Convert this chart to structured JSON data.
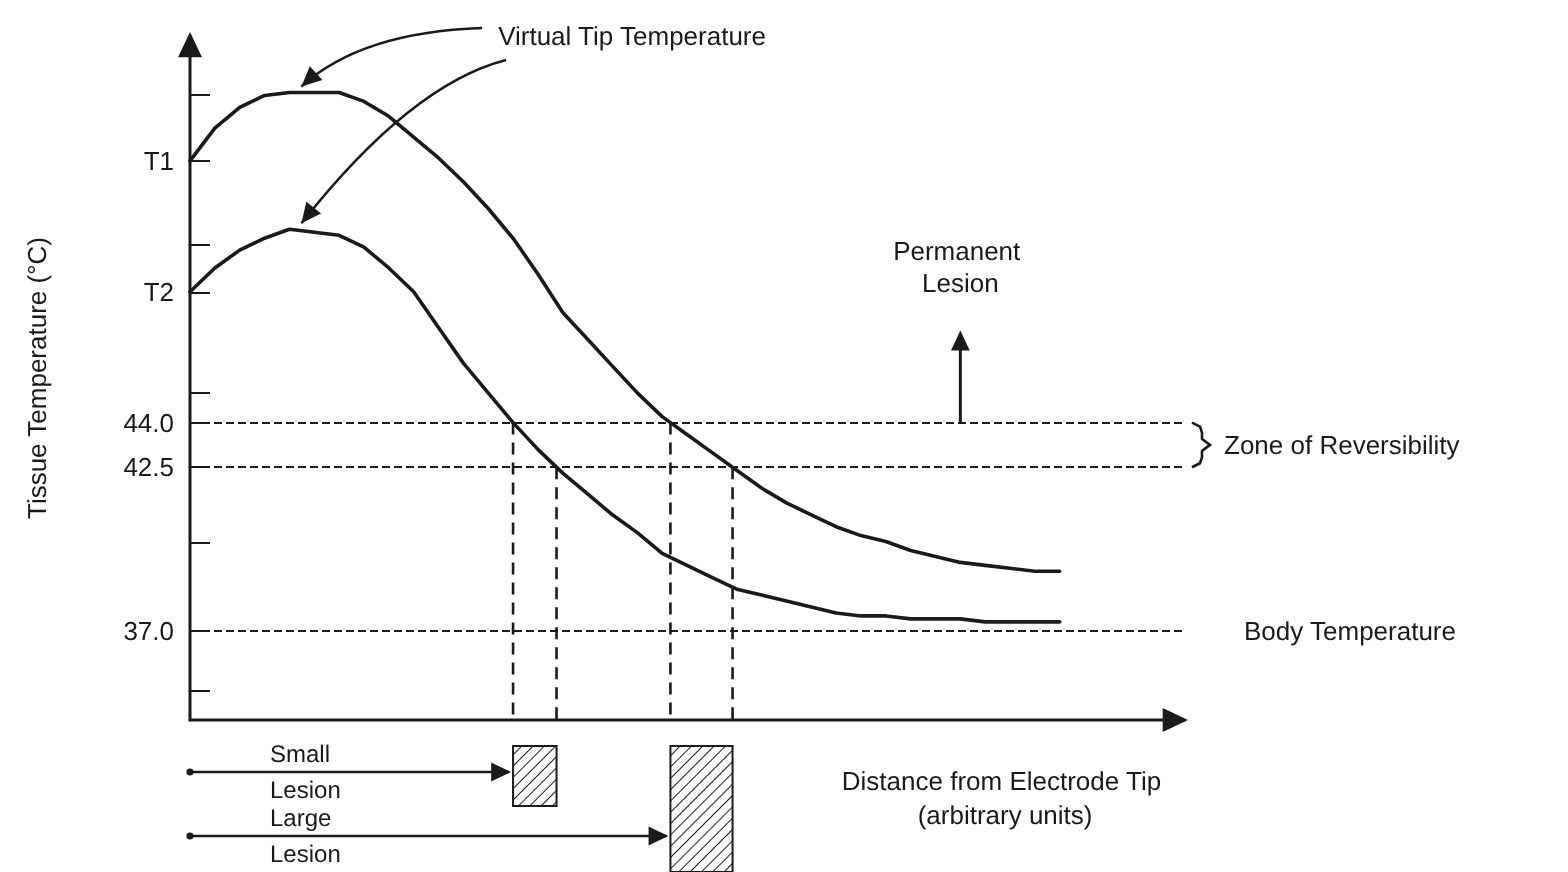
{
  "chart_data": {
    "type": "line",
    "ylabel": "Tissue Temperature (°C)",
    "xlabel": "Distance from Electrode Tip (arbitrary units)",
    "categories": [
      null,
      null,
      null,
      null,
      null,
      null,
      null,
      null,
      null,
      null,
      null,
      null,
      null,
      null,
      null,
      null,
      null,
      null,
      null,
      null,
      null,
      null,
      null,
      null,
      null,
      null,
      null,
      null,
      null,
      null,
      null,
      null,
      null,
      null,
      null,
      null,
      null,
      null,
      null,
      null,
      null
    ],
    "ylim": [
      34,
      57
    ],
    "yticks": [
      {
        "value": 35,
        "label": null
      },
      {
        "value": 37,
        "label": "37.0"
      },
      {
        "value": 40,
        "label": null
      },
      42.5,
      {
        "value": 44,
        "label": "44.0"
      },
      {
        "value": 45,
        "label": null
      },
      {
        "value": 48.4,
        "label": "T2"
      },
      {
        "value": 50,
        "label": null
      },
      {
        "value": 52.8,
        "label": "T1"
      },
      {
        "value": 55,
        "label": null
      }
    ],
    "tick_labels": "y",
    "marker": "none",
    "line_style": "solid",
    "series": [
      {
        "color": "#1a1a1a",
        "values": [
          52.8,
          53.9,
          54.6,
          55.0,
          55.1,
          55.1,
          55.1,
          54.8,
          54.3,
          53.6,
          52.9,
          52.1,
          51.2,
          50.2,
          49.0,
          47.7,
          46.8,
          45.9,
          45.0,
          44.2,
          43.6,
          43.0,
          42.4,
          41.8,
          41.3,
          40.9,
          40.5,
          40.2,
          40.0,
          39.7,
          39.5,
          39.3,
          39.2,
          39.1,
          39.0,
          39.0,
          null,
          null,
          null,
          null,
          null
        ]
      },
      {
        "color": "#1a1a1a",
        "values": [
          48.4,
          49.2,
          49.8,
          50.2,
          50.5,
          50.4,
          50.3,
          49.9,
          49.2,
          48.4,
          47.2,
          46.0,
          45.0,
          44.0,
          43.1,
          42.3,
          41.6,
          40.9,
          40.3,
          39.6,
          39.2,
          38.8,
          38.4,
          38.2,
          38.0,
          37.8,
          37.6,
          37.5,
          37.5,
          37.4,
          37.4,
          37.4,
          37.3,
          37.3,
          37.3,
          37.3,
          null,
          null,
          null,
          null,
          null
        ]
      }
    ],
    "ref_lines": [
      {
        "axis": "y",
        "value": 44,
        "line_style": "dashed"
      },
      {
        "axis": "y",
        "value": 42.5,
        "line_style": "dashed"
      },
      {
        "axis": "y",
        "value": 37,
        "label": "Body Temperature",
        "line_style": "dashed"
      }
    ],
    "annotations": [
      "Virtual Tip Temperature",
      "Permanent Lesion",
      "Zone of Reversibility",
      "Small Lesion",
      "Large Lesion"
    ]
  }
}
